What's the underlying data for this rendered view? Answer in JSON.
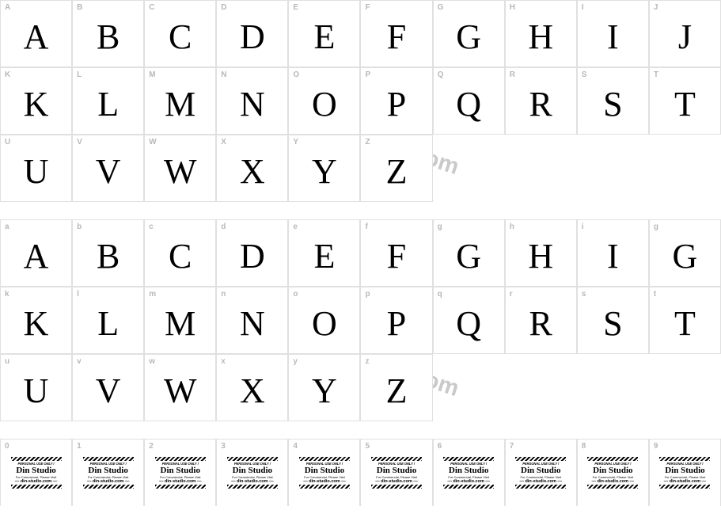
{
  "watermark_text": "from www.novelfonts.com",
  "sections": {
    "uppercase": {
      "labels": [
        "A",
        "B",
        "C",
        "D",
        "E",
        "F",
        "G",
        "H",
        "I",
        "J",
        "K",
        "L",
        "M",
        "N",
        "O",
        "P",
        "Q",
        "R",
        "S",
        "T",
        "U",
        "V",
        "W",
        "X",
        "Y",
        "Z"
      ],
      "glyphs": [
        "A",
        "B",
        "C",
        "D",
        "E",
        "F",
        "G",
        "H",
        "I",
        "J",
        "K",
        "L",
        "M",
        "N",
        "O",
        "P",
        "Q",
        "R",
        "S",
        "T",
        "U",
        "V",
        "W",
        "X",
        "Y",
        "Z"
      ]
    },
    "lowercase": {
      "labels": [
        "a",
        "b",
        "c",
        "d",
        "e",
        "f",
        "g",
        "h",
        "i",
        "g",
        "k",
        "l",
        "m",
        "n",
        "o",
        "p",
        "q",
        "r",
        "s",
        "t",
        "u",
        "v",
        "w",
        "x",
        "y",
        "z"
      ],
      "glyphs": [
        "A",
        "B",
        "C",
        "D",
        "E",
        "F",
        "G",
        "H",
        "I",
        "G",
        "K",
        "L",
        "M",
        "N",
        "O",
        "P",
        "Q",
        "R",
        "S",
        "T",
        "U",
        "V",
        "W",
        "X",
        "Y",
        "Z"
      ]
    },
    "digits": {
      "labels": [
        "0",
        "1",
        "2",
        "3",
        "4",
        "5",
        "6",
        "7",
        "8",
        "9"
      ]
    }
  },
  "logo": {
    "line1": "PERSONAL USE ONLY !",
    "line2": "Din Studio",
    "line3": "For Commercial, Please Visit",
    "line4": "— din-studio.com —"
  },
  "colors": {
    "border": "#e0e0e0",
    "label": "#b8b8b8",
    "glyph": "#000000",
    "watermark": "#808080",
    "background": "#ffffff"
  }
}
